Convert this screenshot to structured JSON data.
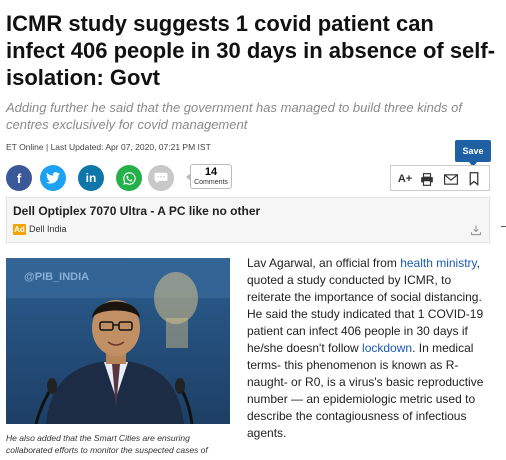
{
  "article": {
    "headline": "ICMR study suggests 1 covid patient can infect 406 people in 30 days in absence of self-isolation: Govt",
    "synopsis": "Adding further he said that the government has managed to build three kinds of centres exclusively for covid management",
    "byline": "ET Online | Last Updated: Apr 07, 2020, 07:21 PM IST"
  },
  "share": {
    "facebook_glyph": "f",
    "linkedin_glyph": "in",
    "comments_count": "14",
    "comments_label": "Comments"
  },
  "toolbar": {
    "save_label": "Save",
    "font_size_label": "A+"
  },
  "ad": {
    "title": "Dell Optiplex 7070 Ultra - A PC like no other",
    "badge": "Ad",
    "source": "Dell India"
  },
  "photo": {
    "caption": "He also added that the Smart Cities are ensuring collaborated efforts to monitor the suspected cases of"
  },
  "body": {
    "p1_a": "Lav Agarwal, an official from ",
    "link1": "health ministry",
    "p1_b": ", quoted a study conducted by ICMR, to reiterate the importance of social distancing. He said the study indicated that 1 COVID-19 patient can infect 406 people in 30 days if he/she doesn't follow ",
    "link2": "lockdown",
    "p1_c": ". In medical terms- this phenomenon is known as R-naught- or R0, is a virus's basic reproductive number — an epidemiologic metric used to describe the contagiousness of infectious agents."
  },
  "colors": {
    "facebook": "#3b5998",
    "twitter": "#1da1f2",
    "linkedin": "#0e76a8",
    "whatsapp": "#25b14a",
    "save": "#1f5fa4",
    "link": "#1a5ab5",
    "ad_badge": "#f4a300"
  }
}
